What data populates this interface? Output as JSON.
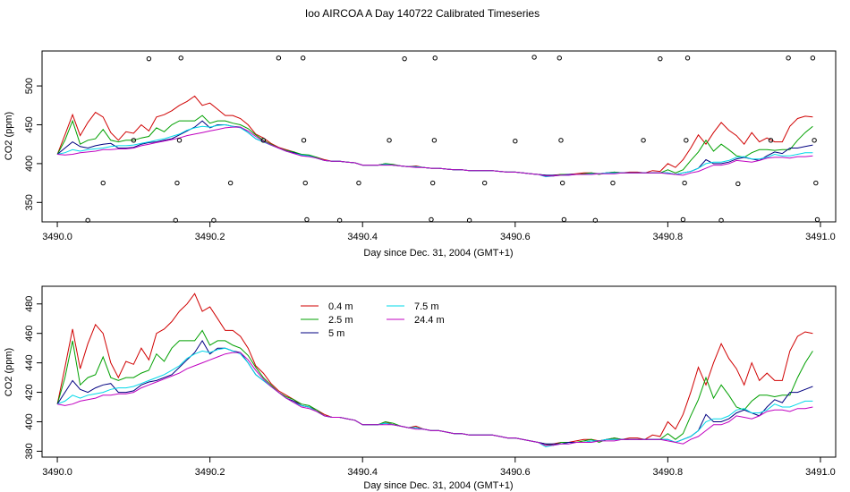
{
  "title": "Ioo AIRCOA A  Day 140722  Calibrated Timeseries",
  "colors": {
    "0.4 m": "#d00000",
    "2.5 m": "#00a000",
    "5 m": "#000080",
    "7.5 m": "#00d8e8",
    "24.4 m": "#c000c0"
  },
  "chart_data": [
    {
      "type": "line",
      "xlabel": "Day since Dec. 31, 2004 (GMT+1)",
      "ylabel": "CO2 (ppm)",
      "xlim": [
        3489.98,
        3491.02
      ],
      "ylim": [
        325,
        545
      ],
      "x_ticks": [
        "3490.0",
        "3490.2",
        "3490.4",
        "3490.6",
        "3490.8",
        "3491.0"
      ],
      "x_tick_values": [
        3490.0,
        3490.2,
        3490.4,
        3490.6,
        3490.8,
        3491.0
      ],
      "y_ticks": [
        "350",
        "400",
        "450",
        "500"
      ],
      "y_tick_values": [
        350,
        400,
        450,
        500
      ],
      "grid": false,
      "x": [
        3490.0,
        3490.01,
        3490.02,
        3490.03,
        3490.04,
        3490.05,
        3490.06,
        3490.07,
        3490.08,
        3490.09,
        3490.1,
        3490.11,
        3490.12,
        3490.13,
        3490.14,
        3490.15,
        3490.16,
        3490.17,
        3490.18,
        3490.19,
        3490.2,
        3490.21,
        3490.22,
        3490.23,
        3490.24,
        3490.25,
        3490.26,
        3490.27,
        3490.28,
        3490.29,
        3490.3,
        3490.31,
        3490.32,
        3490.33,
        3490.34,
        3490.35,
        3490.36,
        3490.37,
        3490.38,
        3490.39,
        3490.4,
        3490.41,
        3490.42,
        3490.43,
        3490.44,
        3490.45,
        3490.46,
        3490.47,
        3490.48,
        3490.49,
        3490.5,
        3490.51,
        3490.52,
        3490.53,
        3490.54,
        3490.55,
        3490.56,
        3490.57,
        3490.58,
        3490.59,
        3490.6,
        3490.61,
        3490.62,
        3490.63,
        3490.64,
        3490.65,
        3490.66,
        3490.67,
        3490.68,
        3490.69,
        3490.7,
        3490.71,
        3490.72,
        3490.73,
        3490.74,
        3490.75,
        3490.76,
        3490.77,
        3490.78,
        3490.79,
        3490.8,
        3490.81,
        3490.82,
        3490.83,
        3490.84,
        3490.85,
        3490.86,
        3490.87,
        3490.88,
        3490.89,
        3490.9,
        3490.91,
        3490.92,
        3490.93,
        3490.94,
        3490.95,
        3490.96,
        3490.97,
        3490.98,
        3490.99
      ],
      "series": [
        {
          "name": "0.4 m",
          "values": [
            412,
            437,
            463,
            436,
            453,
            466,
            460,
            440,
            430,
            441,
            439,
            450,
            442,
            460,
            463,
            468,
            475,
            480,
            487,
            475,
            478,
            470,
            462,
            462,
            458,
            450,
            438,
            433,
            426,
            421,
            418,
            415,
            411,
            410,
            408,
            405,
            403,
            403,
            402,
            401,
            398,
            398,
            398,
            400,
            398,
            397,
            396,
            397,
            395,
            394,
            394,
            393,
            392,
            392,
            391,
            391,
            391,
            391,
            390,
            389,
            389,
            388,
            387,
            386,
            384,
            385,
            386,
            386,
            387,
            388,
            388,
            387,
            388,
            389,
            388,
            389,
            389,
            388,
            391,
            390,
            400,
            395,
            405,
            420,
            437,
            425,
            440,
            453,
            443,
            436,
            425,
            440,
            428,
            433,
            428,
            428,
            448,
            458,
            461,
            460
          ]
        },
        {
          "name": "2.5 m",
          "values": [
            412,
            430,
            455,
            425,
            430,
            432,
            444,
            430,
            428,
            430,
            430,
            433,
            435,
            446,
            441,
            450,
            455,
            455,
            455,
            462,
            452,
            455,
            455,
            452,
            450,
            445,
            437,
            430,
            425,
            420,
            417,
            415,
            412,
            411,
            408,
            404,
            403,
            403,
            402,
            401,
            398,
            398,
            398,
            400,
            399,
            397,
            396,
            396,
            395,
            394,
            394,
            393,
            392,
            392,
            391,
            391,
            391,
            391,
            390,
            389,
            389,
            388,
            387,
            386,
            385,
            384,
            386,
            386,
            386,
            387,
            388,
            386,
            388,
            389,
            388,
            388,
            388,
            388,
            388,
            388,
            392,
            388,
            392,
            404,
            415,
            430,
            416,
            425,
            418,
            410,
            408,
            414,
            418,
            418,
            417,
            418,
            418,
            430,
            440,
            448
          ]
        },
        {
          "name": "5 m",
          "values": [
            412,
            420,
            428,
            422,
            420,
            423,
            425,
            426,
            420,
            420,
            421,
            425,
            427,
            428,
            430,
            432,
            437,
            442,
            447,
            455,
            446,
            450,
            450,
            448,
            447,
            440,
            432,
            428,
            424,
            420,
            416,
            414,
            411,
            410,
            407,
            404,
            403,
            403,
            402,
            401,
            398,
            398,
            398,
            399,
            398,
            397,
            396,
            396,
            395,
            394,
            394,
            393,
            392,
            392,
            391,
            391,
            391,
            391,
            390,
            389,
            389,
            388,
            387,
            386,
            385,
            385,
            385,
            386,
            386,
            386,
            387,
            387,
            388,
            388,
            388,
            388,
            388,
            388,
            388,
            388,
            388,
            386,
            388,
            390,
            394,
            405,
            400,
            400,
            402,
            406,
            408,
            406,
            404,
            410,
            415,
            413,
            420,
            420,
            422,
            424
          ]
        },
        {
          "name": "7.5 m",
          "values": [
            412,
            414,
            418,
            416,
            418,
            419,
            420,
            422,
            423,
            423,
            424,
            426,
            428,
            430,
            432,
            435,
            438,
            443,
            446,
            448,
            447,
            449,
            450,
            448,
            446,
            440,
            432,
            428,
            424,
            420,
            416,
            413,
            411,
            410,
            407,
            404,
            403,
            403,
            402,
            401,
            398,
            398,
            398,
            399,
            398,
            397,
            396,
            396,
            395,
            394,
            394,
            393,
            392,
            392,
            391,
            391,
            391,
            391,
            390,
            389,
            389,
            388,
            387,
            386,
            383,
            384,
            385,
            385,
            386,
            386,
            387,
            387,
            388,
            388,
            388,
            388,
            388,
            388,
            388,
            388,
            388,
            386,
            388,
            390,
            394,
            400,
            402,
            402,
            404,
            408,
            409,
            406,
            406,
            408,
            412,
            410,
            410,
            412,
            414,
            414
          ]
        },
        {
          "name": "24.4 m",
          "values": [
            412,
            411,
            412,
            414,
            415,
            416,
            418,
            418,
            419,
            419,
            420,
            423,
            425,
            427,
            429,
            431,
            433,
            436,
            438,
            440,
            442,
            444,
            446,
            447,
            447,
            442,
            435,
            429,
            424,
            420,
            416,
            413,
            410,
            409,
            407,
            404,
            403,
            403,
            402,
            401,
            398,
            398,
            398,
            398,
            398,
            397,
            396,
            395,
            395,
            394,
            394,
            393,
            392,
            392,
            391,
            391,
            391,
            391,
            390,
            389,
            389,
            388,
            387,
            386,
            384,
            384,
            385,
            385,
            386,
            386,
            386,
            387,
            387,
            387,
            388,
            388,
            388,
            388,
            388,
            388,
            387,
            386,
            385,
            388,
            390,
            394,
            398,
            398,
            400,
            404,
            403,
            402,
            404,
            407,
            408,
            408,
            407,
            409,
            409,
            410
          ]
        }
      ],
      "calibration_points": [
        {
          "x": 3490.04,
          "y": 327
        },
        {
          "x": 3490.06,
          "y": 375
        },
        {
          "x": 3490.1,
          "y": 430
        },
        {
          "x": 3490.12,
          "y": 535
        },
        {
          "x": 3490.155,
          "y": 327
        },
        {
          "x": 3490.157,
          "y": 375
        },
        {
          "x": 3490.16,
          "y": 430
        },
        {
          "x": 3490.162,
          "y": 536
        },
        {
          "x": 3490.205,
          "y": 327
        },
        {
          "x": 3490.227,
          "y": 375
        },
        {
          "x": 3490.27,
          "y": 430
        },
        {
          "x": 3490.29,
          "y": 536
        },
        {
          "x": 3490.322,
          "y": 536
        },
        {
          "x": 3490.323,
          "y": 430
        },
        {
          "x": 3490.325,
          "y": 375
        },
        {
          "x": 3490.327,
          "y": 328
        },
        {
          "x": 3490.37,
          "y": 327
        },
        {
          "x": 3490.395,
          "y": 375
        },
        {
          "x": 3490.435,
          "y": 430
        },
        {
          "x": 3490.455,
          "y": 535
        },
        {
          "x": 3490.49,
          "y": 328
        },
        {
          "x": 3490.492,
          "y": 375
        },
        {
          "x": 3490.494,
          "y": 430
        },
        {
          "x": 3490.495,
          "y": 536
        },
        {
          "x": 3490.54,
          "y": 327
        },
        {
          "x": 3490.56,
          "y": 375
        },
        {
          "x": 3490.6,
          "y": 429
        },
        {
          "x": 3490.625,
          "y": 537
        },
        {
          "x": 3490.658,
          "y": 536
        },
        {
          "x": 3490.66,
          "y": 430
        },
        {
          "x": 3490.662,
          "y": 375
        },
        {
          "x": 3490.664,
          "y": 328
        },
        {
          "x": 3490.705,
          "y": 327
        },
        {
          "x": 3490.728,
          "y": 375
        },
        {
          "x": 3490.768,
          "y": 430
        },
        {
          "x": 3490.79,
          "y": 535
        },
        {
          "x": 3490.82,
          "y": 328
        },
        {
          "x": 3490.822,
          "y": 375
        },
        {
          "x": 3490.824,
          "y": 430
        },
        {
          "x": 3490.826,
          "y": 536
        },
        {
          "x": 3490.87,
          "y": 327
        },
        {
          "x": 3490.892,
          "y": 374
        },
        {
          "x": 3490.935,
          "y": 430
        },
        {
          "x": 3490.958,
          "y": 536
        },
        {
          "x": 3490.99,
          "y": 536
        },
        {
          "x": 3490.992,
          "y": 430
        },
        {
          "x": 3490.994,
          "y": 375
        },
        {
          "x": 3490.996,
          "y": 328
        }
      ]
    },
    {
      "type": "line",
      "xlabel": "Day since Dec. 31, 2004 (GMT+1)",
      "ylabel": "CO2 (ppm)",
      "xlim": [
        3489.98,
        3491.02
      ],
      "ylim": [
        376,
        492
      ],
      "x_ticks": [
        "3490.0",
        "3490.2",
        "3490.4",
        "3490.6",
        "3490.8",
        "3491.0"
      ],
      "x_tick_values": [
        3490.0,
        3490.2,
        3490.4,
        3490.6,
        3490.8,
        3491.0
      ],
      "y_ticks": [
        "380",
        "400",
        "420",
        "440",
        "460",
        "480"
      ],
      "y_tick_values": [
        380,
        400,
        420,
        440,
        460,
        480
      ],
      "grid": false,
      "legend_position": "top-left",
      "legend": [
        "0.4 m",
        "2.5 m",
        "5 m",
        "7.5 m",
        "24.4 m"
      ]
    }
  ]
}
